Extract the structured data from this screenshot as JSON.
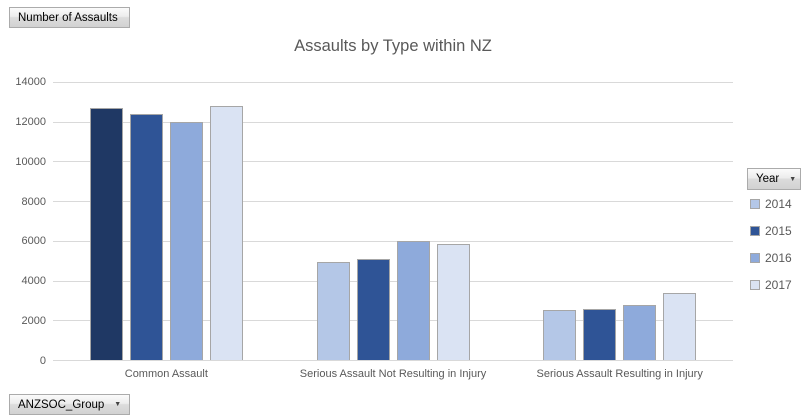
{
  "app": {
    "value_field_button": "Number of Assaults",
    "axis_field_button": "ANZSOC_Group",
    "legend_field_button": "Year"
  },
  "icons": {
    "dropdown_arrow": "▼"
  },
  "chart_data": {
    "type": "bar",
    "title": "Assaults by Type within NZ",
    "categories": [
      "Common Assault",
      "Serious Assault Not Resulting in Injury",
      "Serious Assault Resulting in Injury"
    ],
    "series": [
      {
        "name": "2014",
        "color": "#B4C7E7",
        "values": [
          12700,
          4950,
          2500
        ]
      },
      {
        "name": "2015",
        "color": "#2F5496",
        "values": [
          12400,
          5100,
          2550
        ]
      },
      {
        "name": "2016",
        "color": "#8EAADB",
        "values": [
          12000,
          6000,
          2750
        ]
      },
      {
        "name": "2017",
        "color": "#DAE3F3",
        "values": [
          12800,
          5850,
          3350
        ]
      }
    ],
    "point_color_overrides": [
      {
        "series": "2014",
        "category": "Common Assault",
        "color": "#1F3864"
      }
    ],
    "ylim": [
      0,
      14000
    ],
    "ytick_interval": 2000,
    "ytick_labels": [
      "14000",
      "12000",
      "10000",
      "8000",
      "6000",
      "4000",
      "2000",
      "0"
    ],
    "grid": true,
    "legend_position": "right",
    "bar_border_color": "#A6A6A6",
    "gridline_color": "#D9D9D9",
    "text_color": "#595959"
  }
}
